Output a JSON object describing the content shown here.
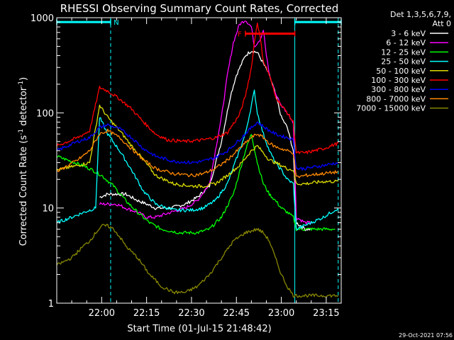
{
  "chart_data": {
    "type": "line",
    "title": "RHESSI Observing Summary Count Rates, Corrected",
    "xlabel": "Start Time (01-Jul-15 21:48:42)",
    "ylabel": "Corrected Count Rate (s⁻¹ detector⁻¹)",
    "ylabel_parts": [
      "Corrected Count Rate (s",
      "-1",
      " detector",
      "-1",
      ")"
    ],
    "yscale": "log",
    "ylim": [
      1,
      1000
    ],
    "xlim_min": [
      -3,
      92
    ],
    "x_ticks": [
      {
        "min": 12,
        "label": "22:00"
      },
      {
        "min": 27,
        "label": "22:15"
      },
      {
        "min": 42,
        "label": "22:30"
      },
      {
        "min": 57,
        "label": "22:45"
      },
      {
        "min": 72,
        "label": "23:00"
      },
      {
        "min": 87,
        "label": "23:15"
      }
    ],
    "y_ticks": [
      {
        "value": 1,
        "label": "1"
      },
      {
        "value": 10,
        "label": "10"
      },
      {
        "value": 100,
        "label": "100"
      },
      {
        "value": 1000,
        "label": "1000"
      }
    ],
    "legend": {
      "placement": "right",
      "header": [
        "Det 1,3,5,6,7,9,",
        "Att 0"
      ],
      "entries": [
        {
          "label": "3 - 6 keV",
          "color": "#ffffff"
        },
        {
          "label": "6 - 12 keV",
          "color": "#ff00ff"
        },
        {
          "label": "12 - 25 keV",
          "color": "#00ff00"
        },
        {
          "label": "25 - 50 keV",
          "color": "#00ffff"
        },
        {
          "label": "50 - 100 keV",
          "color": "#dddd00"
        },
        {
          "label": "100 - 300 keV",
          "color": "#ff0000"
        },
        {
          "label": "300 - 800 keV",
          "color": "#0000ff"
        },
        {
          "label": "800 - 7000 keV",
          "color": "#ff8800"
        },
        {
          "label": "7000 - 15000 keV",
          "color": "#888800"
        }
      ]
    },
    "annotations": [
      {
        "label": "N",
        "color": "#00ffff",
        "from_min": -3,
        "to_min": 15,
        "level": 900
      },
      {
        "label": "F",
        "color": "#ff0000",
        "from_min": 60,
        "to_min": 76.5,
        "level": 680
      },
      {
        "label": "",
        "color": "#00ffff",
        "from_min": 76.5,
        "to_min": 92,
        "level": 900
      }
    ],
    "dashed_lines_min": [
      15,
      91
    ],
    "solid_line_min": 76.5,
    "series": [
      {
        "name": "3 - 6 keV",
        "color": "#ffffff",
        "x": [
          11.3,
          14,
          17,
          20,
          24,
          27,
          30,
          35,
          40,
          44,
          48,
          52,
          55,
          57,
          60,
          62,
          64,
          66,
          68,
          70,
          72,
          74,
          76,
          77,
          80,
          82
        ],
        "y": [
          13,
          14,
          14,
          14,
          12,
          11,
          10,
          10,
          11,
          13,
          17,
          50,
          150,
          250,
          400,
          450,
          430,
          330,
          250,
          160,
          90,
          70,
          40,
          7,
          6,
          6
        ]
      },
      {
        "name": "6 - 12 keV",
        "color": "#ff00ff",
        "x": [
          11.3,
          14,
          17,
          20,
          24,
          27,
          30,
          35,
          40,
          44,
          48,
          52,
          54,
          56,
          58,
          60,
          62,
          63,
          65,
          66,
          67,
          68,
          70,
          72,
          74,
          76,
          77,
          80,
          82
        ],
        "y": [
          11,
          11,
          11,
          10,
          9,
          8,
          8,
          9,
          10,
          12,
          18,
          90,
          250,
          550,
          850,
          950,
          800,
          500,
          600,
          750,
          400,
          250,
          160,
          120,
          100,
          80,
          8,
          7,
          7
        ]
      },
      {
        "name": "12 - 25 keV",
        "color": "#00ff00",
        "x": [
          -3,
          3,
          8,
          12,
          16,
          20,
          24,
          28,
          32,
          38,
          44,
          48,
          52,
          56,
          60,
          62,
          64,
          66,
          68,
          70,
          72,
          74,
          76,
          77,
          80,
          90
        ],
        "y": [
          35,
          30,
          26,
          22,
          17,
          12,
          9,
          7,
          6,
          5.5,
          5.5,
          6,
          8,
          14,
          40,
          60,
          30,
          18,
          14,
          12,
          10,
          9,
          8,
          6,
          6,
          6
        ]
      },
      {
        "name": "25 - 50 keV",
        "color": "#00ffff",
        "x": [
          -3,
          2,
          6,
          10,
          11.3,
          14,
          18,
          22,
          26,
          30,
          36,
          42,
          46,
          50,
          54,
          58,
          60,
          62,
          63,
          64,
          66,
          68,
          70,
          72,
          74,
          76,
          77,
          82,
          86,
          91
        ],
        "y": [
          7,
          8,
          9,
          10,
          90,
          60,
          40,
          25,
          15,
          11,
          9.5,
          9.5,
          10,
          12,
          18,
          40,
          60,
          120,
          170,
          100,
          60,
          40,
          30,
          25,
          20,
          18,
          6,
          7,
          8,
          10
        ]
      },
      {
        "name": "50 - 100 keV",
        "color": "#dddd00",
        "x": [
          -3,
          4,
          8,
          11.3,
          14,
          18,
          22,
          26,
          30,
          36,
          42,
          46,
          50,
          54,
          58,
          62,
          64,
          66,
          68,
          70,
          72,
          74,
          76,
          77,
          80,
          86,
          91
        ],
        "y": [
          25,
          28,
          30,
          120,
          90,
          65,
          45,
          32,
          22,
          18,
          17,
          17,
          18,
          22,
          28,
          40,
          45,
          38,
          32,
          30,
          28,
          26,
          25,
          18,
          18,
          19,
          19
        ]
      },
      {
        "name": "100 - 300 keV",
        "color": "#ff0000",
        "x": [
          -3,
          4,
          8,
          11.3,
          14,
          18,
          22,
          26,
          30,
          34,
          40,
          46,
          50,
          54,
          58,
          60,
          62,
          63,
          64,
          65,
          66,
          68,
          70,
          72,
          74,
          76,
          77,
          80,
          86,
          91
        ],
        "y": [
          45,
          55,
          65,
          185,
          170,
          140,
          110,
          80,
          60,
          52,
          50,
          52,
          55,
          62,
          95,
          150,
          300,
          550,
          900,
          600,
          350,
          250,
          150,
          120,
          100,
          80,
          38,
          38,
          42,
          48
        ]
      },
      {
        "name": "300 - 800 keV",
        "color": "#0000ff",
        "x": [
          -3,
          4,
          8,
          11.3,
          14,
          18,
          22,
          26,
          30,
          36,
          42,
          46,
          50,
          54,
          58,
          62,
          64,
          66,
          68,
          70,
          72,
          74,
          76,
          77,
          80,
          86,
          91
        ],
        "y": [
          40,
          50,
          55,
          70,
          75,
          68,
          55,
          42,
          35,
          31,
          30,
          31,
          34,
          40,
          52,
          70,
          80,
          72,
          65,
          60,
          57,
          55,
          52,
          26,
          26,
          28,
          30
        ]
      },
      {
        "name": "800 - 7000 keV",
        "color": "#ff8800",
        "x": [
          -3,
          4,
          8,
          11.3,
          14,
          18,
          22,
          26,
          30,
          36,
          42,
          46,
          50,
          54,
          58,
          62,
          64,
          66,
          68,
          70,
          72,
          74,
          76,
          77,
          80,
          86,
          91
        ],
        "y": [
          24,
          32,
          40,
          60,
          65,
          55,
          42,
          32,
          26,
          23,
          22,
          23,
          26,
          32,
          42,
          55,
          60,
          55,
          48,
          44,
          42,
          40,
          38,
          21,
          22,
          23,
          24
        ]
      },
      {
        "name": "7000 - 15000 keV",
        "color": "#888800",
        "x": [
          -3,
          2,
          6,
          8,
          10,
          12,
          14,
          16,
          18,
          20,
          24,
          28,
          32,
          36,
          40,
          44,
          48,
          52,
          56,
          60,
          64,
          66,
          68,
          70,
          72,
          74,
          76,
          77,
          80,
          86,
          91
        ],
        "y": [
          2.5,
          3,
          4,
          4.5,
          5.5,
          6.5,
          6.5,
          6,
          5,
          4,
          3,
          2,
          1.5,
          1.3,
          1.3,
          1.5,
          2,
          3,
          4.5,
          5.5,
          6,
          5.5,
          4.5,
          3,
          2,
          1.5,
          1.2,
          1.2,
          1.2,
          1.2,
          1.2
        ]
      }
    ]
  },
  "footer": {
    "timestamp": "29-Oct-2021 07:56"
  }
}
